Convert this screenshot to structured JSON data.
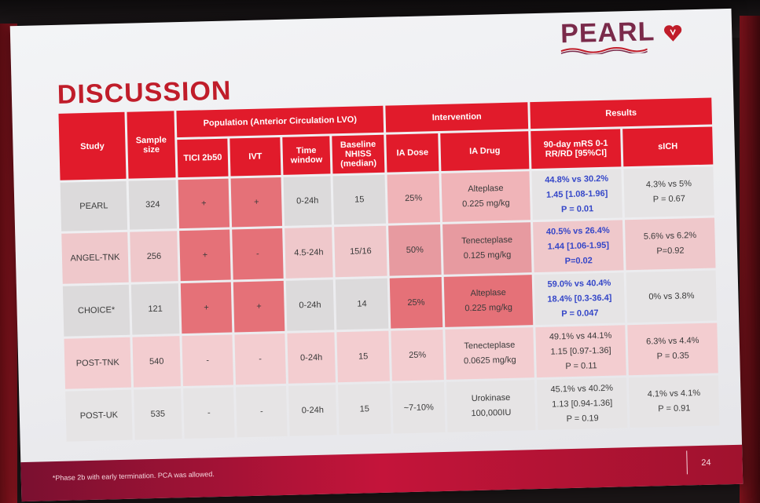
{
  "slide": {
    "title": "DISCUSSION",
    "logo_text": "PEARL",
    "footnote": "*Phase 2b with early termination. PCA was allowed.",
    "page_number": "24"
  },
  "headers": {
    "study": "Study",
    "sample_size": "Sample size",
    "population": "Population (Anterior Circulation LVO)",
    "intervention": "Intervention",
    "results": "Results",
    "tici": "TICI 2b50",
    "ivt": "IVT",
    "time_window": "Time window",
    "nihss": "Baseline NHISS (median)",
    "ia_dose": "IA Dose",
    "ia_drug": "IA Drug",
    "mrs": "90-day mRS 0-1 RR/RD [95%CI]",
    "sich": "sICH"
  },
  "rows": [
    {
      "study": "PEARL",
      "n": "324",
      "tici": "+",
      "ivt": "+",
      "time": "0-24h",
      "nihss": "15",
      "dose": "25%",
      "drug1": "Alteplase",
      "drug2": "0.225 mg/kg",
      "mrs1": "44.8% vs 30.2%",
      "mrs2": "1.45 [1.08-1.96]",
      "mrs3": "P = 0.01",
      "sich1": "4.3% vs 5%",
      "sich2": "P = 0.67"
    },
    {
      "study": "ANGEL-TNK",
      "n": "256",
      "tici": "+",
      "ivt": "-",
      "time": "4.5-24h",
      "nihss": "15/16",
      "dose": "50%",
      "drug1": "Tenecteplase",
      "drug2": "0.125 mg/kg",
      "mrs1": "40.5% vs 26.4%",
      "mrs2": "1.44 [1.06-1.95]",
      "mrs3": "P=0.02",
      "sich1": "5.6% vs 6.2%",
      "sich2": "P=0.92"
    },
    {
      "study": "CHOICE*",
      "n": "121",
      "tici": "+",
      "ivt": "+",
      "time": "0-24h",
      "nihss": "14",
      "dose": "25%",
      "drug1": "Alteplase",
      "drug2": "0.225 mg/kg",
      "mrs1": "59.0% vs 40.4%",
      "mrs2": "18.4% [0.3-36.4]",
      "mrs3": "P = 0.047",
      "sich1": "0% vs 3.8%",
      "sich2": ""
    },
    {
      "study": "POST-TNK",
      "n": "540",
      "tici": "-",
      "ivt": "-",
      "time": "0-24h",
      "nihss": "15",
      "dose": "25%",
      "drug1": "Tenecteplase",
      "drug2": "0.0625 mg/kg",
      "mrs1": "49.1% vs 44.1%",
      "mrs2": "1.15 [0.97-1.36]",
      "mrs3": "P = 0.11",
      "sich1": "6.3% vs 4.4%",
      "sich2": "P = 0.35"
    },
    {
      "study": "POST-UK",
      "n": "535",
      "tici": "-",
      "ivt": "-",
      "time": "0-24h",
      "nihss": "15",
      "dose": "~7-10%",
      "drug1": "Urokinase",
      "drug2": "100,000IU",
      "mrs1": "45.1% vs 40.2%",
      "mrs2": "1.13 [0.94-1.36]",
      "mrs3": "P = 0.19",
      "sich1": "4.1% vs 4.1%",
      "sich2": "P = 0.91"
    }
  ]
}
